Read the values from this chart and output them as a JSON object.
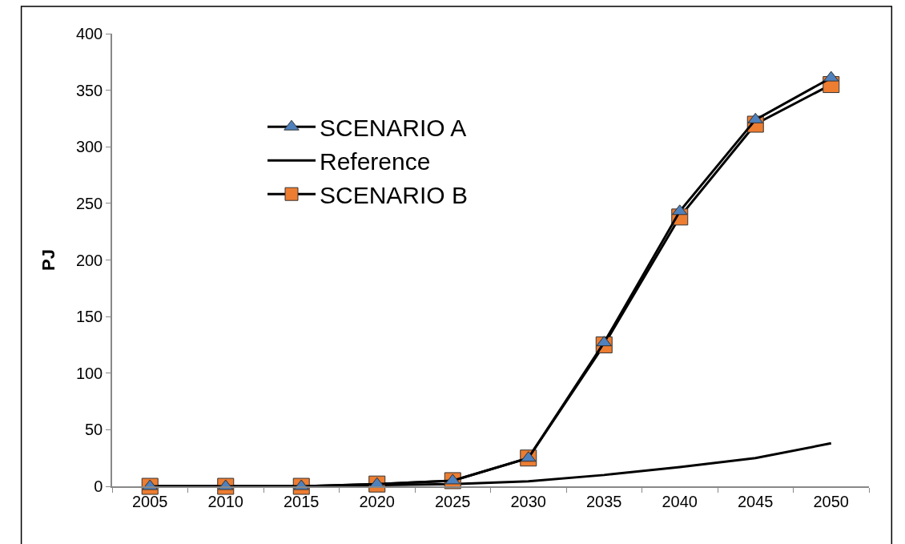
{
  "chart_data": {
    "type": "line",
    "ylabel": "PJ",
    "categories": [
      "2005",
      "2010",
      "2015",
      "2020",
      "2025",
      "2030",
      "2035",
      "2040",
      "2045",
      "2050"
    ],
    "series": [
      {
        "name": "SCENARIO A",
        "color": "#4f81bd",
        "marker": "triangle",
        "values": [
          0,
          0,
          0,
          2,
          5,
          25,
          127,
          243,
          324,
          361
        ]
      },
      {
        "name": "Reference",
        "color": "#000000",
        "marker": "none",
        "values": [
          0,
          0,
          0,
          1,
          2,
          4.5,
          10,
          17,
          25,
          38
        ]
      },
      {
        "name": "SCENARIO B",
        "color": "#ed7d31",
        "marker": "square",
        "values": [
          0,
          0,
          0,
          2,
          5,
          25,
          125,
          238,
          320,
          355
        ]
      }
    ],
    "ylim": [
      0,
      400
    ],
    "yticks": [
      0,
      50,
      100,
      150,
      200,
      250,
      300,
      350,
      400
    ],
    "legend": "center left",
    "line_style": "solid"
  }
}
